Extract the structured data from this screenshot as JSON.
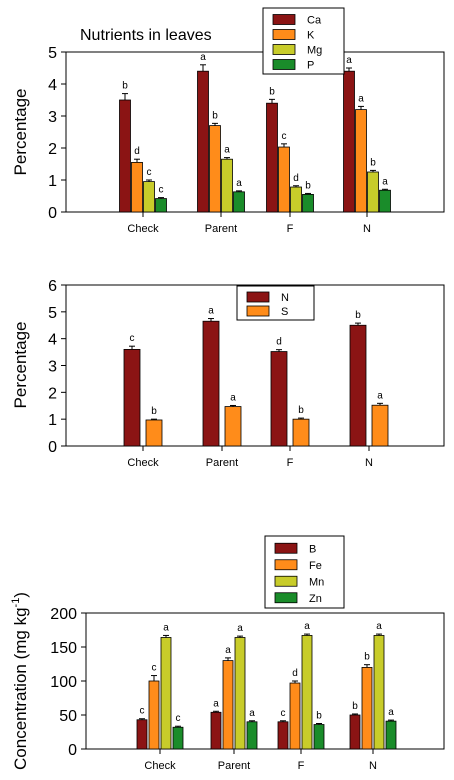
{
  "chart_data": [
    {
      "type": "bar",
      "title": "Nutrients in leaves",
      "ylabel": "Percentage",
      "xlabel": "",
      "ylim": [
        0,
        5
      ],
      "yticks": [
        0,
        1,
        2,
        3,
        4,
        5
      ],
      "categories": [
        "Check",
        "Parent",
        "F",
        "N"
      ],
      "legend_position": "top-right",
      "series": [
        {
          "name": "Ca",
          "color": "#8b1414",
          "values": [
            3.5,
            4.4,
            3.4,
            4.4
          ],
          "errors": [
            0.2,
            0.2,
            0.12,
            0.1
          ],
          "labels": [
            "b",
            "a",
            "b",
            "a"
          ]
        },
        {
          "name": "K",
          "color": "#ff8c1a",
          "values": [
            1.55,
            2.7,
            2.03,
            3.2
          ],
          "errors": [
            0.1,
            0.07,
            0.1,
            0.1
          ],
          "labels": [
            "d",
            "b",
            "c",
            "a"
          ]
        },
        {
          "name": "Mg",
          "color": "#c8cc2a",
          "values": [
            0.95,
            1.65,
            0.78,
            1.25
          ],
          "errors": [
            0.05,
            0.05,
            0.04,
            0.05
          ],
          "labels": [
            "c",
            "a",
            "d",
            "b"
          ]
        },
        {
          "name": "P",
          "color": "#1a8c2a",
          "values": [
            0.42,
            0.63,
            0.55,
            0.68
          ],
          "errors": [
            0.03,
            0.03,
            0.03,
            0.03
          ],
          "labels": [
            "c",
            "a",
            "b",
            "a"
          ]
        }
      ]
    },
    {
      "type": "bar",
      "title": "",
      "ylabel": "Percentage",
      "xlabel": "",
      "ylim": [
        0,
        6
      ],
      "yticks": [
        0,
        1,
        2,
        3,
        4,
        5,
        6
      ],
      "categories": [
        "Check",
        "Parent",
        "F",
        "N"
      ],
      "legend_position": "top-center",
      "series": [
        {
          "name": "N",
          "color": "#8b1414",
          "values": [
            3.6,
            4.65,
            3.52,
            4.5
          ],
          "errors": [
            0.12,
            0.1,
            0.07,
            0.08
          ],
          "labels": [
            "c",
            "a",
            "d",
            "b"
          ]
        },
        {
          "name": "S",
          "color": "#ff8c1a",
          "values": [
            0.97,
            1.47,
            1.0,
            1.52
          ],
          "errors": [
            0.03,
            0.04,
            0.04,
            0.07
          ],
          "labels": [
            "b",
            "a",
            "b",
            "a"
          ]
        }
      ]
    },
    {
      "type": "bar",
      "title": "",
      "ylabel": "Concentration (mg kg",
      "ylabel_superscript": "-1",
      "ylabel_suffix": ")",
      "xlabel": "",
      "ylim": [
        0,
        200
      ],
      "yticks": [
        0,
        50,
        100,
        150,
        200
      ],
      "categories": [
        "Check",
        "Parent",
        "F",
        "N"
      ],
      "legend_position": "top-center",
      "series": [
        {
          "name": "B",
          "color": "#8b1414",
          "values": [
            43,
            54,
            40,
            50
          ],
          "errors": [
            1.5,
            1.5,
            1.5,
            1.5
          ],
          "labels": [
            "c",
            "a",
            "c",
            "b"
          ]
        },
        {
          "name": "Fe",
          "color": "#ff8c1a",
          "values": [
            100,
            130,
            97,
            120
          ],
          "errors": [
            8,
            4,
            3,
            4
          ],
          "labels": [
            "c",
            "a",
            "d",
            "b"
          ]
        },
        {
          "name": "Mn",
          "color": "#c8cc2a",
          "values": [
            164,
            164,
            167,
            167
          ],
          "errors": [
            3,
            2,
            2,
            2
          ],
          "labels": [
            "a",
            "a",
            "a",
            "a"
          ]
        },
        {
          "name": "Zn",
          "color": "#1a8c2a",
          "values": [
            32,
            40,
            36,
            41
          ],
          "errors": [
            1.5,
            1.5,
            1.5,
            1.5
          ],
          "labels": [
            "c",
            "a",
            "b",
            "a"
          ]
        }
      ]
    }
  ]
}
